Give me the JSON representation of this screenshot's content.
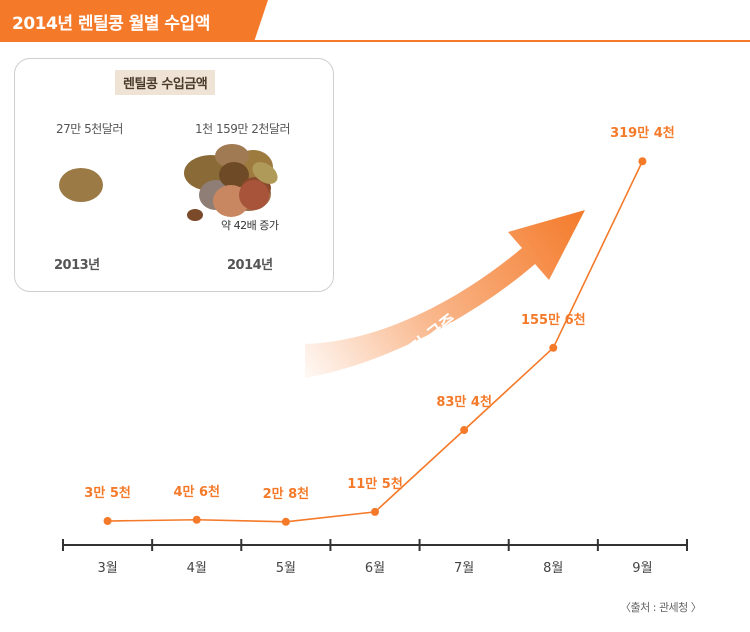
{
  "title": "2014년 렌틸콩 월별 수입액",
  "colors": {
    "accent": "#f47a2a",
    "bean": "#9b7a45"
  },
  "inset": {
    "title": "렌틸콩 수입금액",
    "left": {
      "amount": "27만 5천달러",
      "year": "2013년"
    },
    "right": {
      "amount": "1천 159만 2천달러",
      "year": "2014년",
      "note": "약 42배 증가"
    }
  },
  "arrow_label": "6월부터 급증",
  "source": "〈출처 : 관세청 〉",
  "chart_data": {
    "type": "line",
    "title": "2014년 렌틸콩 월별 수입액",
    "categories": [
      "3월",
      "4월",
      "5월",
      "6월",
      "7월",
      "8월",
      "9월"
    ],
    "values": [
      35000,
      46000,
      28000,
      115000,
      834000,
      1556000,
      3194000
    ],
    "labels": [
      "3만 5천",
      "4만 6천",
      "2만 8천",
      "11만 5천",
      "83만 4천",
      "155만 6천",
      "319만 4천"
    ],
    "ylim": [
      0,
      3600000
    ],
    "xlabel": "",
    "ylabel": "",
    "grid": false
  }
}
